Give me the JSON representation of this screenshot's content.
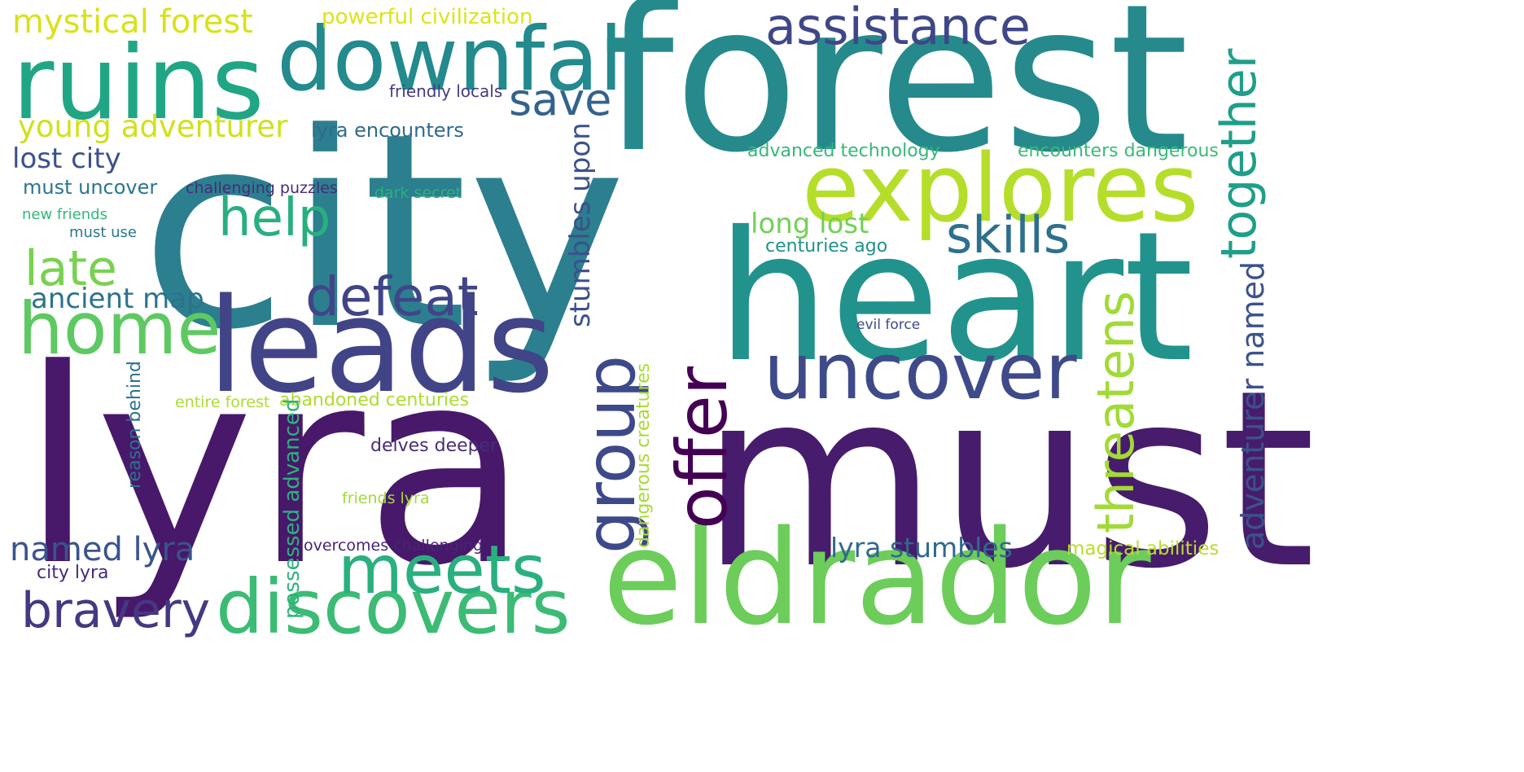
{
  "words": [
    {
      "text": "city",
      "color": "#2c7f8e"
    },
    {
      "text": "lyra",
      "color": "#48186a"
    },
    {
      "text": "must",
      "color": "#471c6c"
    },
    {
      "text": "forest",
      "color": "#268a8c"
    },
    {
      "text": "heart",
      "color": "#22938c"
    },
    {
      "text": "eldrador",
      "color": "#6ccd5a"
    },
    {
      "text": "leads",
      "color": "#414487"
    },
    {
      "text": "ruins",
      "color": "#21a685"
    },
    {
      "text": "downfall",
      "color": "#238a8d"
    },
    {
      "text": "explores",
      "color": "#b5de2b"
    },
    {
      "text": "uncover",
      "color": "#3e4a89"
    },
    {
      "text": "discovers",
      "color": "#3cbb75"
    },
    {
      "text": "meets",
      "color": "#2ab07f"
    },
    {
      "text": "home",
      "color": "#5ec962"
    },
    {
      "text": "defeat",
      "color": "#404588"
    },
    {
      "text": "assistance",
      "color": "#3f4788"
    },
    {
      "text": "help",
      "color": "#29af7f"
    },
    {
      "text": "skills",
      "color": "#2d708e"
    },
    {
      "text": "bravery",
      "color": "#453882"
    },
    {
      "text": "late",
      "color": "#7ad151"
    },
    {
      "text": "save",
      "color": "#33638d"
    },
    {
      "text": "mystical forest",
      "color": "#d8e219"
    },
    {
      "text": "young adventurer",
      "color": "#d0e11c"
    },
    {
      "text": "lost city",
      "color": "#3b518b"
    },
    {
      "text": "ancient map",
      "color": "#2c728e"
    },
    {
      "text": "named lyra",
      "color": "#3a548c"
    },
    {
      "text": "long lost",
      "color": "#73d056"
    },
    {
      "text": "lyra stumbles",
      "color": "#31688e"
    },
    {
      "text": "powerful civilization",
      "color": "#dde318"
    },
    {
      "text": "friendly locals",
      "color": "#443b84"
    },
    {
      "text": "lyra encounters",
      "color": "#306a8e"
    },
    {
      "text": "advanced technology",
      "color": "#35b779"
    },
    {
      "text": "encounters dangerous",
      "color": "#3aba76"
    },
    {
      "text": "must uncover",
      "color": "#2a768e"
    },
    {
      "text": "challenging puzzles",
      "color": "#472c7a"
    },
    {
      "text": "dark secret",
      "color": "#2ab07f"
    },
    {
      "text": "new friends",
      "color": "#35b779"
    },
    {
      "text": "must use",
      "color": "#2a788e"
    },
    {
      "text": "centuries ago",
      "color": "#21918c"
    },
    {
      "text": "evil force",
      "color": "#3e4989"
    },
    {
      "text": "entire forest",
      "color": "#aadc32"
    },
    {
      "text": "abandoned centuries",
      "color": "#addc30"
    },
    {
      "text": "delves deeper",
      "color": "#472d7b"
    },
    {
      "text": "friends lyra",
      "color": "#a0da39"
    },
    {
      "text": "overcomes challenging",
      "color": "#482475"
    },
    {
      "text": "magical abilities",
      "color": "#b8de29"
    },
    {
      "text": "city lyra",
      "color": "#472a7a"
    },
    {
      "text": "group",
      "color": "#3e4989"
    },
    {
      "text": "offer",
      "color": "#440154"
    },
    {
      "text": "threatens",
      "color": "#a2da37"
    },
    {
      "text": "together",
      "color": "#1f9e89"
    },
    {
      "text": "stumbles upon",
      "color": "#3b518b"
    },
    {
      "text": "adventurer named",
      "color": "#3b528b"
    },
    {
      "text": "reason behind",
      "color": "#2c728e"
    },
    {
      "text": "possessed advanced",
      "color": "#2db27d"
    },
    {
      "text": "dangerous creatures",
      "color": "#a8db34"
    }
  ]
}
